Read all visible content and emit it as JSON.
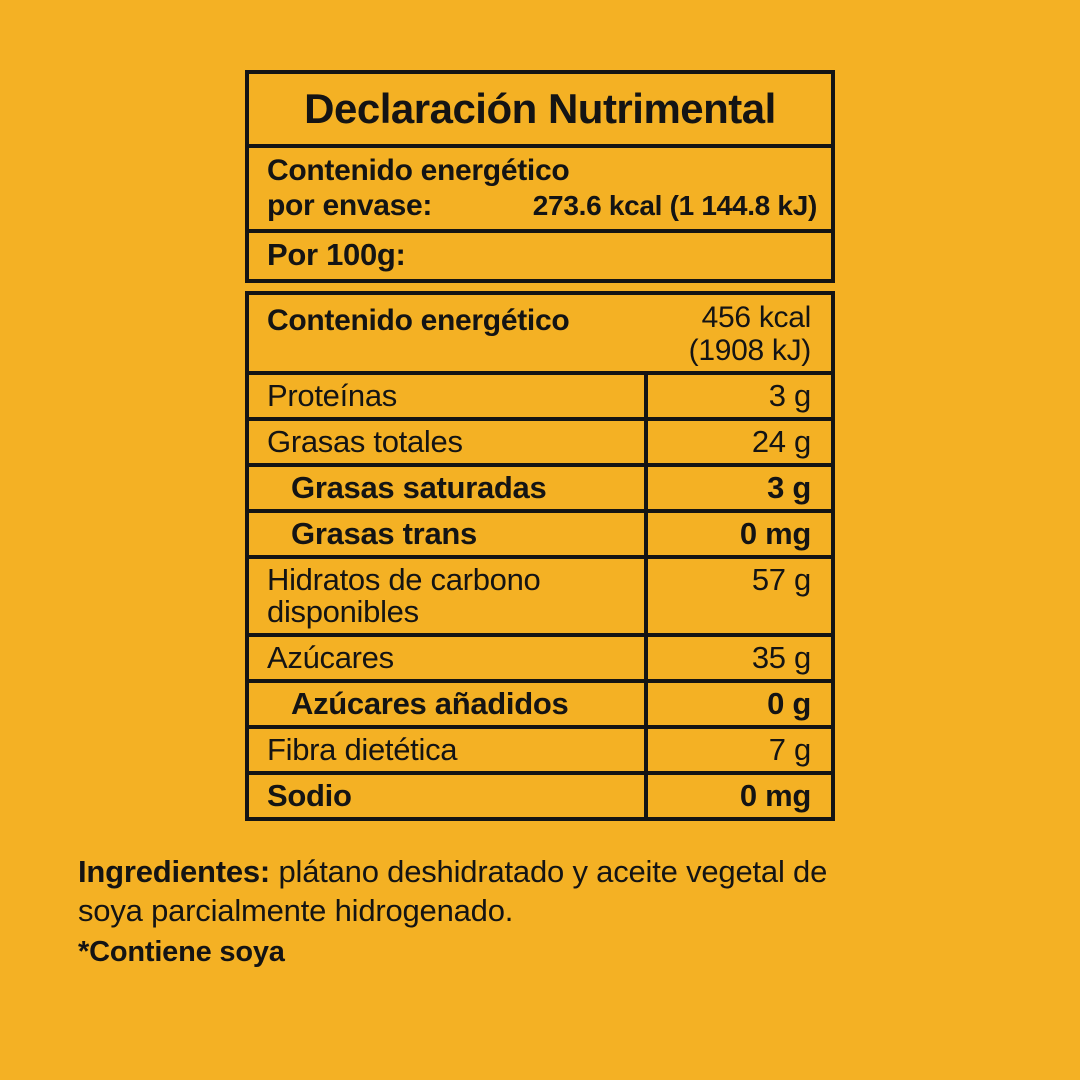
{
  "page": {
    "background_color": "#F4B124",
    "text_color": "#141414",
    "border_color": "#141414"
  },
  "nutrition_label": {
    "title": "Declaración Nutrimental",
    "per_package": {
      "label_line1": "Contenido energético",
      "label_line2": "por envase:",
      "value": "273.6 kcal (1 144.8 kJ)"
    },
    "per_100g_heading": "Por 100g:",
    "energy_per_100g": {
      "label": "Contenido energético",
      "value_line1": "456 kcal",
      "value_line2": "(1908 kJ)"
    },
    "rows": [
      {
        "label": "Proteínas",
        "value": "3 g",
        "bold": false,
        "indent": false
      },
      {
        "label": "Grasas totales",
        "value": "24 g",
        "bold": false,
        "indent": false
      },
      {
        "label": "Grasas saturadas",
        "value": "3 g",
        "bold": true,
        "indent": true
      },
      {
        "label": "Grasas trans",
        "value": "0 mg",
        "bold": true,
        "indent": true
      },
      {
        "label": "Hidratos de carbono disponibles",
        "value": "57 g",
        "bold": false,
        "indent": false
      },
      {
        "label": "Azúcares",
        "value": "35 g",
        "bold": false,
        "indent": false
      },
      {
        "label": "Azúcares añadidos",
        "value": "0 g",
        "bold": true,
        "indent": true
      },
      {
        "label": "Fibra dietética",
        "value": "7 g",
        "bold": false,
        "indent": false
      },
      {
        "label": "Sodio",
        "value": "0 mg",
        "bold": true,
        "indent": false
      }
    ]
  },
  "ingredients": {
    "heading": "Ingredientes:",
    "text_line1": " plátano deshidratado y aceite vegetal de",
    "text_line2": "soya parcialmente hidrogenado.",
    "allergen_note": "*Contiene soya"
  }
}
